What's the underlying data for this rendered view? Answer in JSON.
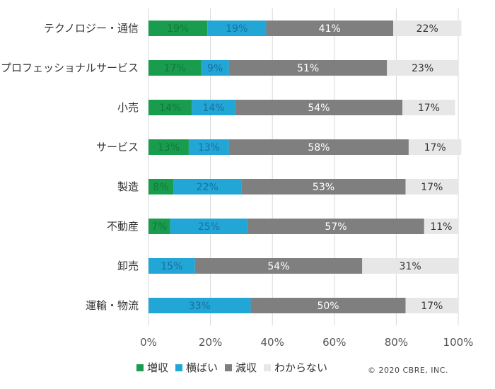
{
  "chart_data": {
    "type": "bar",
    "orientation": "horizontal",
    "stacked": true,
    "categories": [
      "テクノロジー・通信",
      "プロフェッショナルサービス",
      "小売",
      "サービス",
      "製造",
      "不動産",
      "卸売",
      "運輸・物流"
    ],
    "series": [
      {
        "name": "増収",
        "color": "#1a9c4e",
        "values": [
          19,
          17,
          14,
          13,
          8,
          7,
          0,
          0
        ],
        "labels": [
          "19%",
          "17%",
          "14%",
          "13%",
          "8%",
          "7%",
          "",
          ""
        ],
        "label_color": "#0f7a3a"
      },
      {
        "name": "横ばい",
        "color": "#21a6d6",
        "values": [
          19,
          9,
          14,
          13,
          22,
          25,
          15,
          33
        ],
        "labels": [
          "19%",
          "9%",
          "14%",
          "13%",
          "22%",
          "25%",
          "15%",
          "33%"
        ],
        "label_color": "#1d6f9e"
      },
      {
        "name": "減収",
        "color": "#7f7f7f",
        "values": [
          41,
          51,
          54,
          58,
          53,
          57,
          54,
          50
        ],
        "labels": [
          "41%",
          "51%",
          "54%",
          "58%",
          "53%",
          "57%",
          "54%",
          "50%"
        ],
        "label_color": "#ffffff"
      },
      {
        "name": "わからない",
        "color": "#e7e7e7",
        "values": [
          22,
          23,
          17,
          17,
          17,
          11,
          31,
          17
        ],
        "labels": [
          "22%",
          "23%",
          "17%",
          "17%",
          "17%",
          "11%",
          "31%",
          "17%"
        ],
        "label_color": "#333333"
      }
    ],
    "xlim": [
      0,
      100
    ],
    "xticks": [
      "0%",
      "20%",
      "40%",
      "60%",
      "80%",
      "100%"
    ],
    "gridlines": true,
    "legend_position": "bottom"
  },
  "copyright": "© 2020 CBRE, INC."
}
